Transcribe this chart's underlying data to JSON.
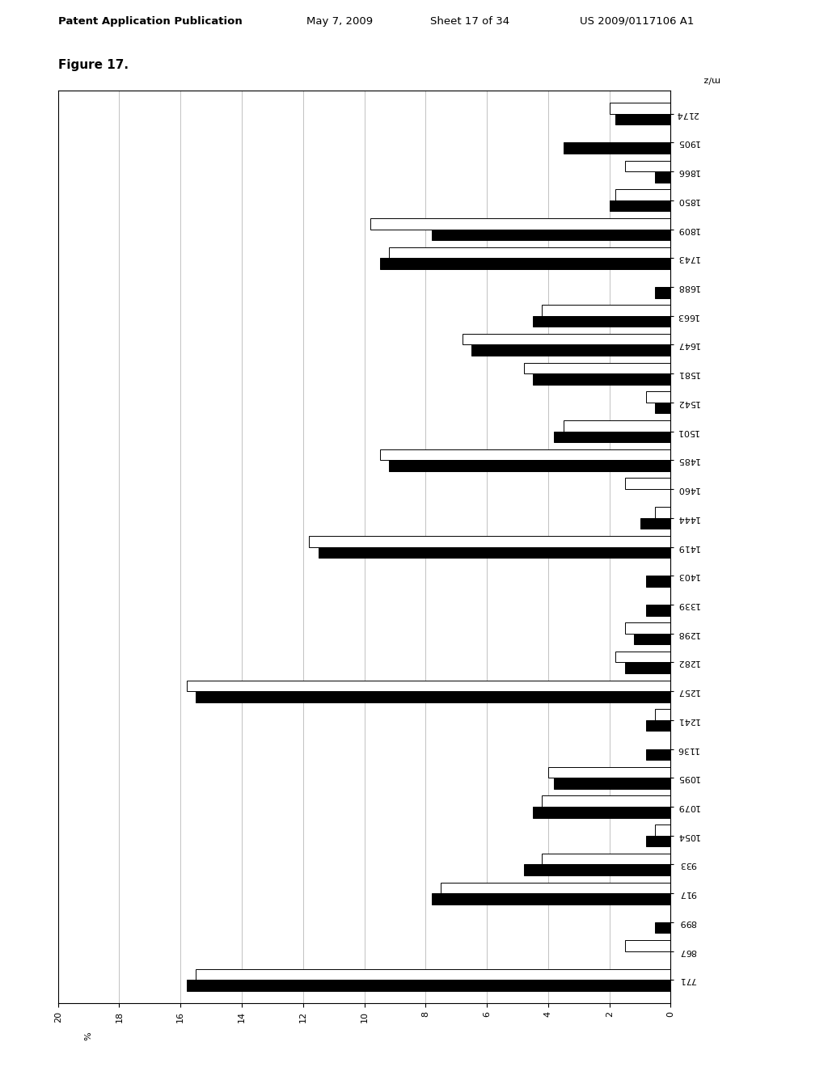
{
  "title": "Figure 17.",
  "header_left": "Patent Application Publication",
  "header_mid1": "May 7, 2009",
  "header_mid2": "Sheet 17 of 34",
  "header_right": "US 2009/0117106 A1",
  "xlim": [
    0,
    20
  ],
  "x_ticks": [
    0,
    2,
    4,
    6,
    8,
    10,
    12,
    14,
    16,
    18,
    20
  ],
  "x_tick_labels": [
    "0",
    "2",
    "4",
    "6",
    "8",
    "10",
    "12",
    "14",
    "16",
    "18",
    "20"
  ],
  "labels": [
    "771",
    "867",
    "899",
    "917",
    "933",
    "1054",
    "1079",
    "1095",
    "1136",
    "1241",
    "1257",
    "1282",
    "1298",
    "1339",
    "1403",
    "1419",
    "1444",
    "1460",
    "1485",
    "1501",
    "1542",
    "1581",
    "1647",
    "1663",
    "1688",
    "1743",
    "1809",
    "1850",
    "1866",
    "1905",
    "2174"
  ],
  "white_bars": [
    15.5,
    1.5,
    0.0,
    7.5,
    4.2,
    0.5,
    4.2,
    4.0,
    0.0,
    0.5,
    15.8,
    1.8,
    1.5,
    0.0,
    0.0,
    11.8,
    0.5,
    1.5,
    9.5,
    3.5,
    0.8,
    4.8,
    6.8,
    4.2,
    0.0,
    9.2,
    9.8,
    1.8,
    1.5,
    0.0,
    2.0
  ],
  "black_bars": [
    15.8,
    0.0,
    0.5,
    7.8,
    4.8,
    0.8,
    4.5,
    3.8,
    0.8,
    0.8,
    15.5,
    1.5,
    1.2,
    0.8,
    0.8,
    11.5,
    1.0,
    0.0,
    9.2,
    3.8,
    0.5,
    4.5,
    6.5,
    4.5,
    0.5,
    9.5,
    7.8,
    2.0,
    0.5,
    3.5,
    1.8
  ],
  "white_color": "#ffffff",
  "black_color": "#000000",
  "bar_height": 0.38,
  "background_color": "#ffffff",
  "grid_color": "#aaaaaa"
}
